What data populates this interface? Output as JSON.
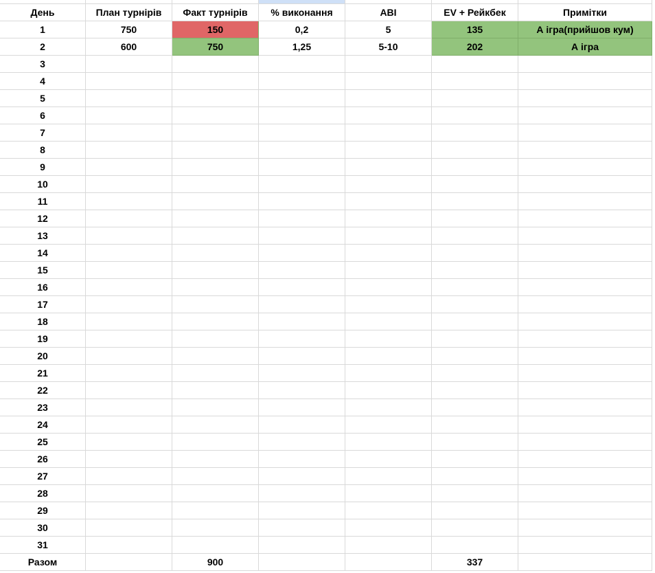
{
  "colors": {
    "red": "#e06666",
    "green": "#93c47d",
    "selected_column_header": "#cfe0f7"
  },
  "columns": [
    "День",
    "План турнірів",
    "Факт турнірів",
    "% виконання",
    "ABI",
    "EV + Рейкбек",
    "Примітки"
  ],
  "rows": [
    {
      "day": "1",
      "plan": "750",
      "fact": "150",
      "percent": "0,2",
      "abi": "5",
      "ev": "135",
      "notes": "А ігра(прийшов кум)",
      "fact_color": "red",
      "ev_color": "green",
      "notes_color": "green"
    },
    {
      "day": "2",
      "plan": "600",
      "fact": "750",
      "percent": "1,25",
      "abi": "5-10",
      "ev": "202",
      "notes": "А ігра",
      "fact_color": "green",
      "ev_color": "green",
      "notes_color": "green"
    },
    {
      "day": "3"
    },
    {
      "day": "4"
    },
    {
      "day": "5"
    },
    {
      "day": "6"
    },
    {
      "day": "7"
    },
    {
      "day": "8"
    },
    {
      "day": "9"
    },
    {
      "day": "10"
    },
    {
      "day": "11"
    },
    {
      "day": "12"
    },
    {
      "day": "13"
    },
    {
      "day": "14"
    },
    {
      "day": "15"
    },
    {
      "day": "16"
    },
    {
      "day": "17"
    },
    {
      "day": "18"
    },
    {
      "day": "19"
    },
    {
      "day": "20"
    },
    {
      "day": "21"
    },
    {
      "day": "22"
    },
    {
      "day": "23"
    },
    {
      "day": "24"
    },
    {
      "day": "25"
    },
    {
      "day": "26"
    },
    {
      "day": "27"
    },
    {
      "day": "28"
    },
    {
      "day": "29"
    },
    {
      "day": "30"
    },
    {
      "day": "31"
    }
  ],
  "total": {
    "label": "Разом",
    "fact": "900",
    "ev": "337"
  }
}
